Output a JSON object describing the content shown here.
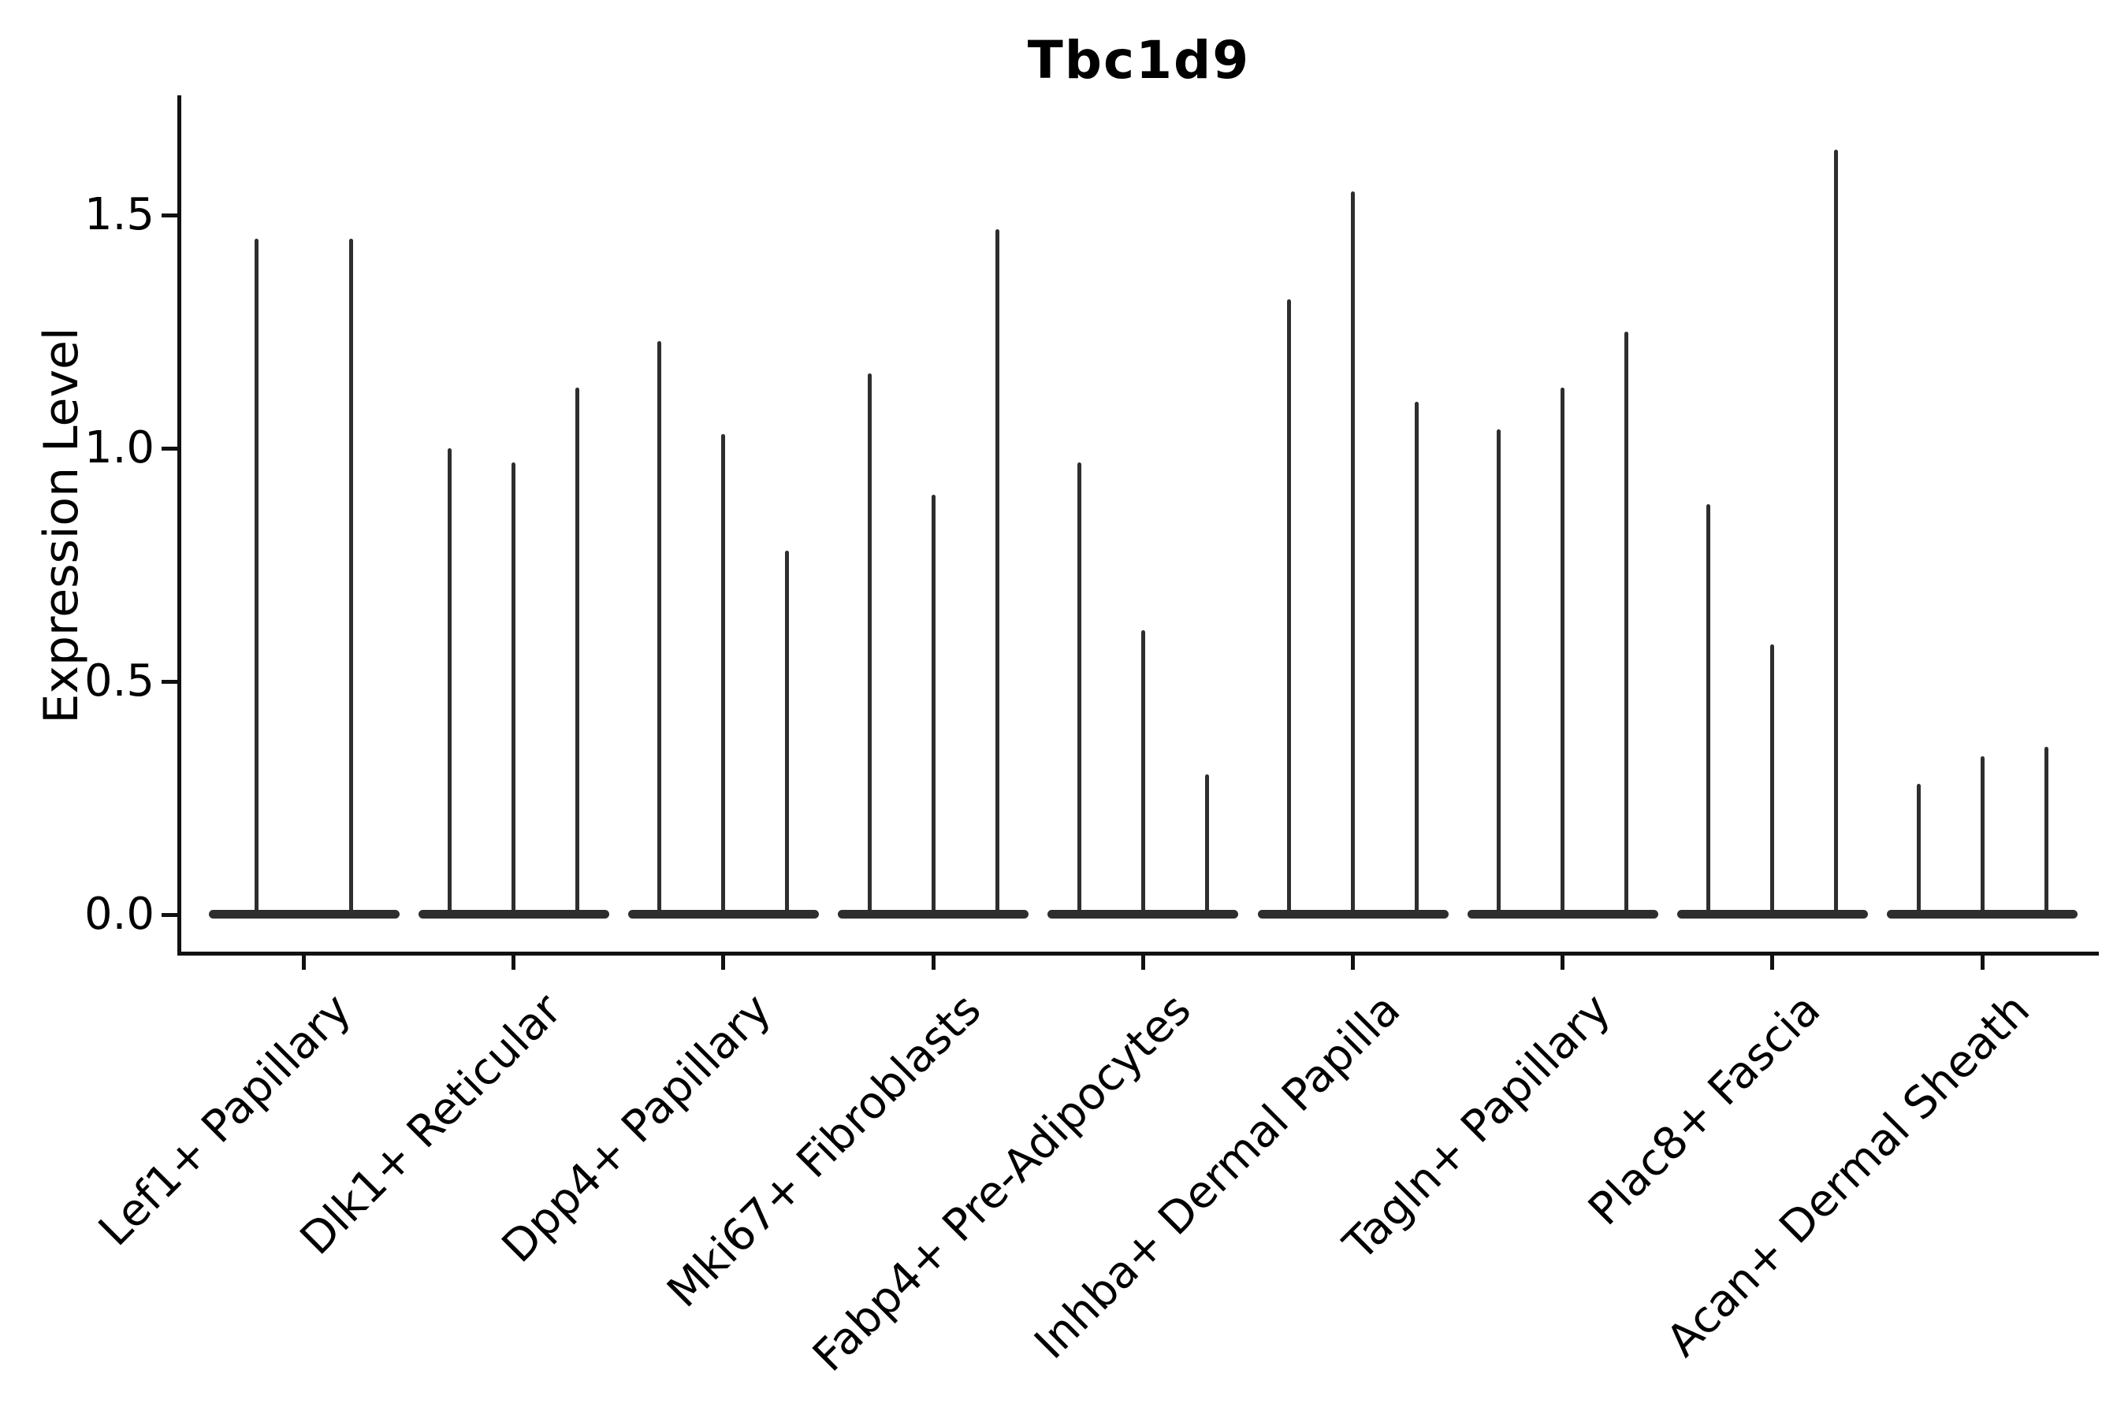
{
  "title": "Tbc1d9",
  "ylabel": "Expression Level",
  "chart_data": {
    "type": "violin",
    "title": "Tbc1d9",
    "xlabel": "",
    "ylabel": "Expression Level",
    "ylim": [
      -0.08,
      1.76
    ],
    "grid": false,
    "legend_position": "none",
    "yticks": [
      0.0,
      0.5,
      1.0,
      1.5
    ],
    "ytick_labels": [
      "0.0",
      "0.5",
      "1.0",
      "1.5"
    ],
    "categories": [
      "Lef1+ Papillary",
      "Dlk1+ Reticular",
      "Dpp4+ Papillary",
      "Mki67+ Fibroblasts",
      "Fabp4+ Pre-Adipocytes",
      "Inhba+ Dermal Papilla",
      "Tagln+ Papillary",
      "Plac8+ Fascia",
      "Acan+ Dermal Sheath"
    ],
    "groups": [
      {
        "category": "Lef1+ Papillary",
        "violin_maxima": [
          1.45,
          1.45
        ]
      },
      {
        "category": "Dlk1+ Reticular",
        "violin_maxima": [
          1.0,
          0.97,
          1.13
        ]
      },
      {
        "category": "Dpp4+ Papillary",
        "violin_maxima": [
          1.23,
          1.03,
          0.78
        ]
      },
      {
        "category": "Mki67+ Fibroblasts",
        "violin_maxima": [
          1.16,
          0.9,
          1.47
        ]
      },
      {
        "category": "Fabp4+ Pre-Adipocytes",
        "violin_maxima": [
          0.97,
          0.61,
          0.3
        ]
      },
      {
        "category": "Inhba+ Dermal Papilla",
        "violin_maxima": [
          1.32,
          1.55,
          1.1
        ]
      },
      {
        "category": "Tagln+ Papillary",
        "violin_maxima": [
          1.04,
          1.13,
          1.25
        ]
      },
      {
        "category": "Plac8+ Fascia",
        "violin_maxima": [
          0.88,
          0.58,
          1.64
        ]
      },
      {
        "category": "Acan+ Dermal Sheath",
        "violin_maxima": [
          0.28,
          0.34,
          0.36
        ]
      }
    ],
    "violin_body": "all density mass collapsed in a flat bar at 0 with a thin spike rising to each violin's maximum",
    "colors": {
      "violin": "#2e2e2e",
      "spine": "#111111",
      "text": "#000000",
      "background": "#ffffff"
    }
  }
}
